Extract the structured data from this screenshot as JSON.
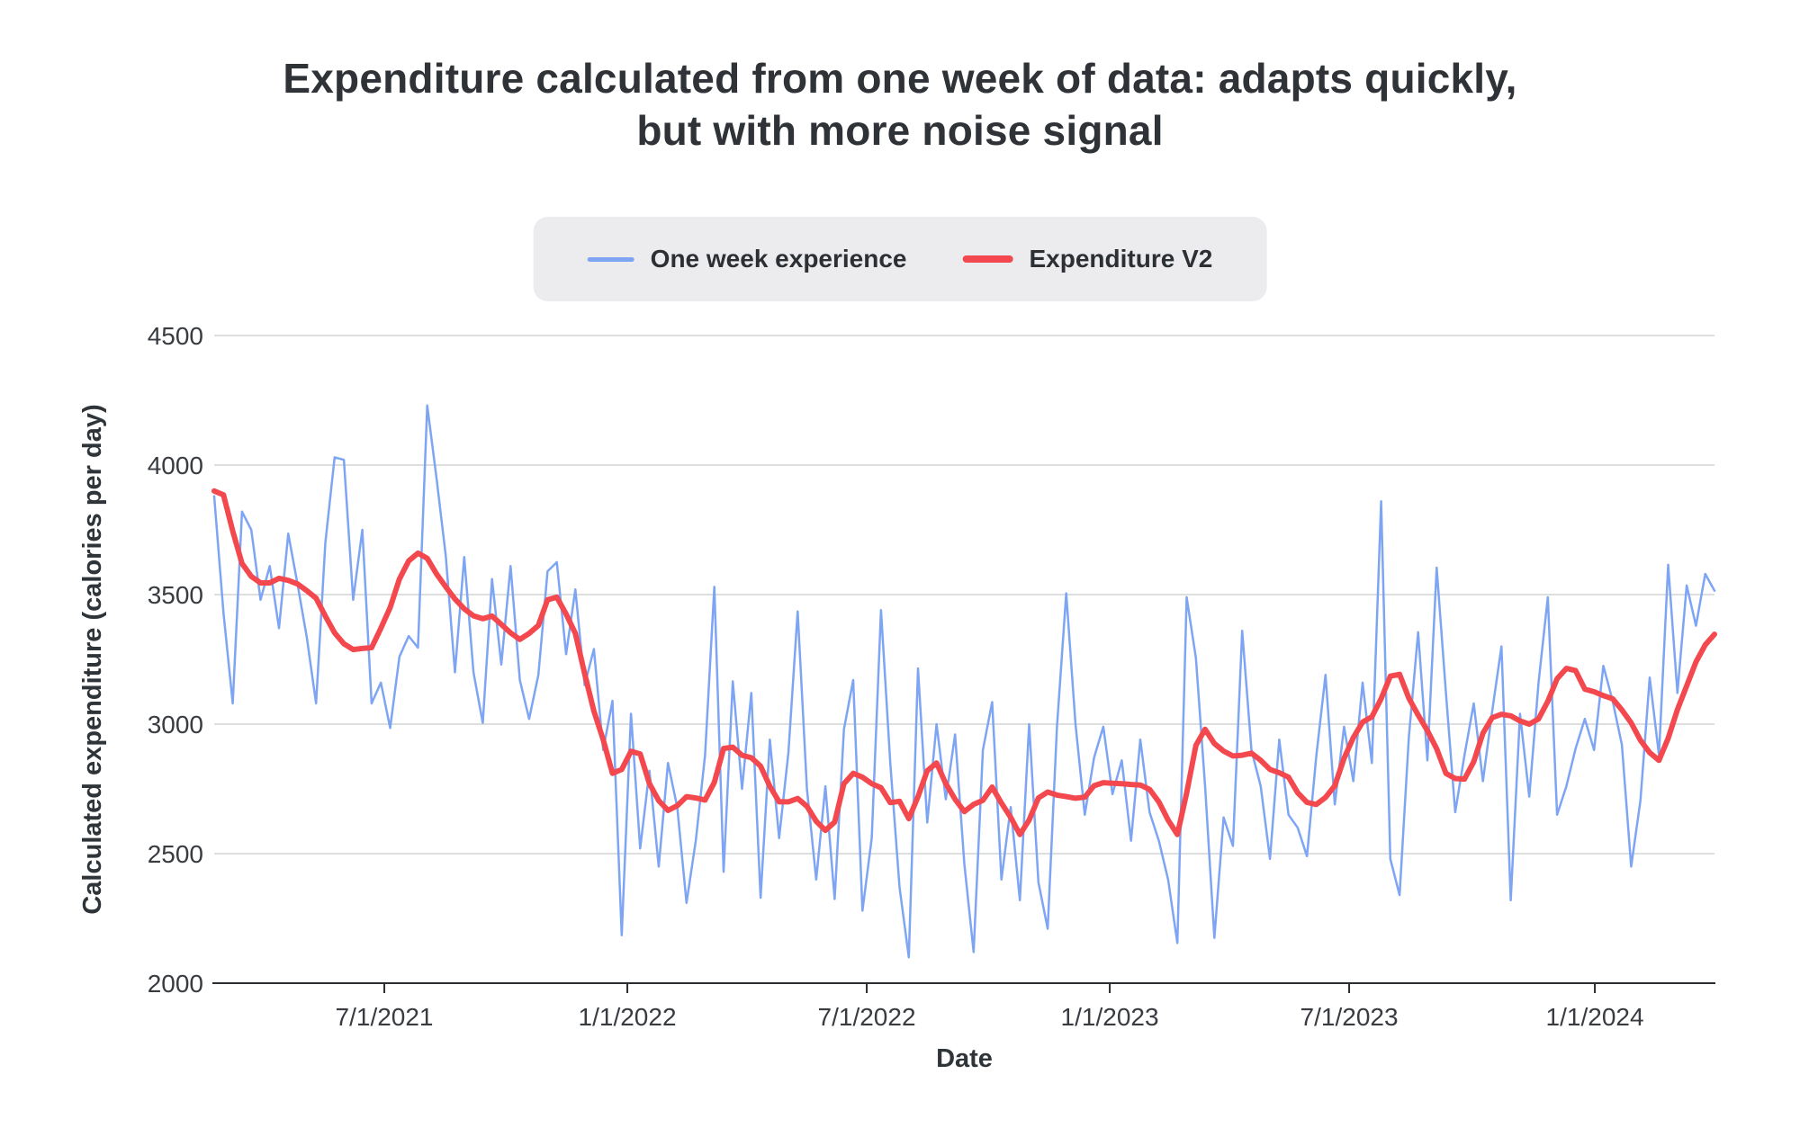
{
  "title": {
    "line1": "Expenditure calculated from one week of data: adapts quickly,",
    "line2": "but with more noise signal"
  },
  "legend": {
    "background": "#ececee",
    "items": [
      {
        "label": "One week experience",
        "color": "#7da5f4",
        "sample_thickness": "thin"
      },
      {
        "label": "Expenditure V2",
        "color": "#f4484f",
        "sample_thickness": "thick"
      }
    ]
  },
  "chart_data": {
    "type": "line",
    "title": "Expenditure calculated from one week of data: adapts quickly, but with more noise signal",
    "xlabel": "Date",
    "ylabel": "Calculated expenditure (calories per day)",
    "ylim": [
      2000,
      4500
    ],
    "y_ticks": [
      2000,
      2500,
      3000,
      3500,
      4000,
      4500
    ],
    "grid": "horizontal-only",
    "gridline_color": "#d2d3d4",
    "axis_line_color": "#2b2e31",
    "legend_position": "top-center",
    "x_tick_labels": [
      "7/1/2021",
      "1/1/2022",
      "7/1/2022",
      "1/1/2023",
      "7/1/2023",
      "1/1/2024"
    ],
    "x_tick_positions_weeks": [
      18.37,
      44.61,
      70.46,
      96.7,
      122.55,
      149.08
    ],
    "x_sampling": "weekly points estimated from plot, week index 0-162",
    "series": [
      {
        "name": "One week experience",
        "color": "#7da5f4",
        "stroke_width": 2.5,
        "values": [
          3880,
          3430,
          3080,
          3820,
          3750,
          3480,
          3610,
          3370,
          3735,
          3540,
          3335,
          3080,
          3700,
          4030,
          4020,
          3480,
          3750,
          3080,
          3160,
          2985,
          3260,
          3340,
          3295,
          4230,
          3950,
          3650,
          3200,
          3645,
          3200,
          3005,
          3560,
          3230,
          3610,
          3170,
          3020,
          3190,
          3590,
          3625,
          3270,
          3520,
          3150,
          3290,
          2900,
          3090,
          2185,
          3040,
          2520,
          2820,
          2450,
          2850,
          2680,
          2310,
          2550,
          2880,
          3530,
          2430,
          3165,
          2750,
          3120,
          2330,
          2940,
          2560,
          2890,
          3435,
          2750,
          2400,
          2760,
          2325,
          2980,
          3170,
          2280,
          2560,
          3440,
          2850,
          2370,
          2100,
          3215,
          2620,
          3000,
          2710,
          2960,
          2460,
          2120,
          2900,
          3085,
          2400,
          2680,
          2320,
          3000,
          2390,
          2210,
          2990,
          3505,
          3000,
          2650,
          2870,
          2990,
          2730,
          2860,
          2550,
          2940,
          2660,
          2550,
          2400,
          2155,
          3490,
          3255,
          2760,
          2175,
          2640,
          2530,
          3360,
          2900,
          2760,
          2480,
          2940,
          2650,
          2600,
          2490,
          2875,
          3190,
          2690,
          2990,
          2780,
          3160,
          2850,
          3860,
          2480,
          2340,
          2950,
          3355,
          2860,
          3604,
          3120,
          2660,
          2880,
          3080,
          2780,
          3050,
          3300,
          2320,
          3040,
          2720,
          3160,
          3490,
          2650,
          2760,
          2905,
          3020,
          2900,
          3225,
          3090,
          2920,
          2450,
          2705,
          3180,
          2880,
          3615,
          3120,
          3535,
          3380,
          3580,
          3515
        ]
      },
      {
        "name": "Expenditure V2",
        "color": "#f4484f",
        "stroke_width": 6,
        "values": [
          3900,
          3885,
          3745,
          3620,
          3570,
          3545,
          3545,
          3563,
          3555,
          3541,
          3515,
          3486,
          3417,
          3352,
          3310,
          3288,
          3292,
          3295,
          3370,
          3450,
          3560,
          3630,
          3660,
          3640,
          3580,
          3530,
          3483,
          3445,
          3418,
          3407,
          3417,
          3385,
          3352,
          3327,
          3350,
          3381,
          3480,
          3490,
          3425,
          3350,
          3195,
          3050,
          2940,
          2810,
          2825,
          2895,
          2885,
          2770,
          2705,
          2667,
          2685,
          2720,
          2715,
          2707,
          2775,
          2906,
          2911,
          2880,
          2870,
          2838,
          2760,
          2700,
          2700,
          2713,
          2683,
          2625,
          2590,
          2622,
          2770,
          2810,
          2795,
          2770,
          2754,
          2697,
          2702,
          2635,
          2720,
          2820,
          2850,
          2770,
          2710,
          2662,
          2690,
          2706,
          2757,
          2695,
          2640,
          2574,
          2630,
          2715,
          2738,
          2726,
          2720,
          2714,
          2718,
          2762,
          2774,
          2772,
          2770,
          2767,
          2765,
          2748,
          2700,
          2630,
          2574,
          2734,
          2918,
          2980,
          2925,
          2896,
          2877,
          2880,
          2888,
          2860,
          2825,
          2812,
          2795,
          2735,
          2698,
          2690,
          2717,
          2762,
          2868,
          2948,
          3008,
          3028,
          3098,
          3185,
          3192,
          3100,
          3035,
          2975,
          2905,
          2810,
          2790,
          2788,
          2855,
          2965,
          3025,
          3038,
          3032,
          3012,
          3000,
          3020,
          3088,
          3175,
          3215,
          3207,
          3135,
          3125,
          3110,
          3098,
          3055,
          3005,
          2938,
          2890,
          2860,
          2945,
          3056,
          3148,
          3240,
          3306,
          3347
        ]
      }
    ]
  }
}
